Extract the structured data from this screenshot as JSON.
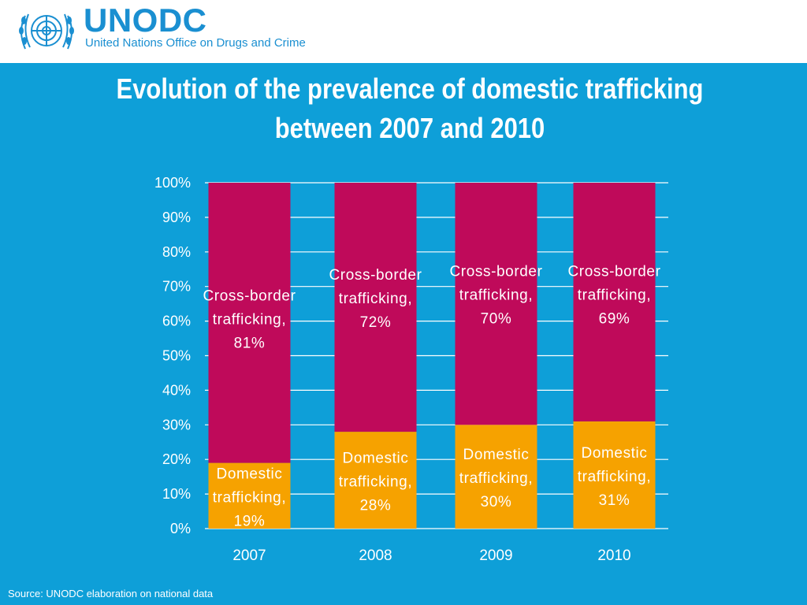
{
  "header": {
    "org_name": "UNODC",
    "org_full_name": "United Nations Office on Drugs and Crime"
  },
  "colors": {
    "background": "#0e9fd8",
    "brand": "#1a8fd1",
    "cross_border": "#bf0a5a",
    "domestic": "#f6a200",
    "text": "#ffffff"
  },
  "chart_data": {
    "type": "bar",
    "stacked": true,
    "title": "Evolution of the prevalence of domestic trafficking between 2007 and 2010",
    "title_lines": [
      "Evolution of the prevalence of domestic trafficking",
      "between 2007 and 2010"
    ],
    "categories": [
      "2007",
      "2008",
      "2009",
      "2010"
    ],
    "series": [
      {
        "name": "Domestic trafficking",
        "values": [
          19,
          28,
          30,
          31
        ],
        "color": "#f6a200"
      },
      {
        "name": "Cross-border trafficking",
        "values": [
          81,
          72,
          70,
          69
        ],
        "color": "#bf0a5a"
      }
    ],
    "y_ticks": [
      "0%",
      "10%",
      "20%",
      "30%",
      "40%",
      "50%",
      "60%",
      "70%",
      "80%",
      "90%",
      "100%"
    ],
    "ylim": [
      0,
      100
    ],
    "grid": true,
    "label_lines": {
      "Domestic trafficking": [
        "Domestic",
        "trafficking,"
      ],
      "Cross-border trafficking": [
        "Cross-border",
        "trafficking,"
      ]
    },
    "data_labels": [
      {
        "category": "2007",
        "domestic": "19%",
        "cross_border": "81%"
      },
      {
        "category": "2008",
        "domestic": "28%",
        "cross_border": "72%"
      },
      {
        "category": "2009",
        "domestic": "30%",
        "cross_border": "70%"
      },
      {
        "category": "2010",
        "domestic": "31%",
        "cross_border": "69%"
      }
    ]
  },
  "footer": {
    "source": "Source: UNODC elaboration on national data"
  }
}
